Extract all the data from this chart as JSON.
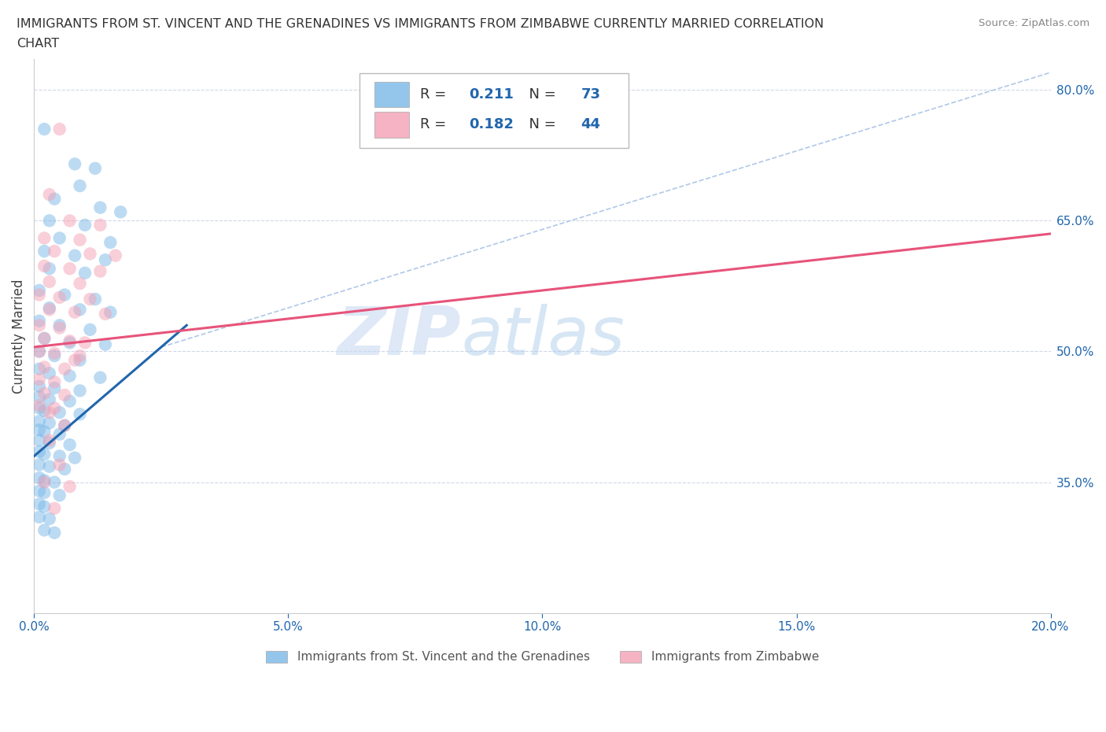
{
  "title_line1": "IMMIGRANTS FROM ST. VINCENT AND THE GRENADINES VS IMMIGRANTS FROM ZIMBABWE CURRENTLY MARRIED CORRELATION",
  "title_line2": "CHART",
  "source": "Source: ZipAtlas.com",
  "ylabel": "Currently Married",
  "xlim": [
    0.0,
    0.2
  ],
  "ylim": [
    0.2,
    0.835
  ],
  "yticks": [
    0.35,
    0.5,
    0.65,
    0.8
  ],
  "ytick_labels": [
    "35.0%",
    "50.0%",
    "65.0%",
    "80.0%"
  ],
  "xticks": [
    0.0,
    0.05,
    0.1,
    0.15,
    0.2
  ],
  "xtick_labels": [
    "0.0%",
    "5.0%",
    "10.0%",
    "15.0%",
    "20.0%"
  ],
  "blue_R": 0.211,
  "blue_N": 73,
  "pink_R": 0.182,
  "pink_N": 44,
  "blue_color": "#7ab8e8",
  "pink_color": "#f4a0b5",
  "blue_scatter": [
    [
      0.002,
      0.755
    ],
    [
      0.008,
      0.715
    ],
    [
      0.012,
      0.71
    ],
    [
      0.009,
      0.69
    ],
    [
      0.004,
      0.675
    ],
    [
      0.013,
      0.665
    ],
    [
      0.017,
      0.66
    ],
    [
      0.003,
      0.65
    ],
    [
      0.01,
      0.645
    ],
    [
      0.005,
      0.63
    ],
    [
      0.015,
      0.625
    ],
    [
      0.002,
      0.615
    ],
    [
      0.008,
      0.61
    ],
    [
      0.014,
      0.605
    ],
    [
      0.003,
      0.595
    ],
    [
      0.01,
      0.59
    ],
    [
      0.001,
      0.57
    ],
    [
      0.006,
      0.565
    ],
    [
      0.012,
      0.56
    ],
    [
      0.003,
      0.55
    ],
    [
      0.009,
      0.548
    ],
    [
      0.015,
      0.545
    ],
    [
      0.001,
      0.535
    ],
    [
      0.005,
      0.53
    ],
    [
      0.011,
      0.525
    ],
    [
      0.002,
      0.515
    ],
    [
      0.007,
      0.51
    ],
    [
      0.014,
      0.508
    ],
    [
      0.001,
      0.5
    ],
    [
      0.004,
      0.495
    ],
    [
      0.009,
      0.49
    ],
    [
      0.001,
      0.48
    ],
    [
      0.003,
      0.475
    ],
    [
      0.007,
      0.472
    ],
    [
      0.013,
      0.47
    ],
    [
      0.001,
      0.46
    ],
    [
      0.004,
      0.458
    ],
    [
      0.009,
      0.455
    ],
    [
      0.001,
      0.448
    ],
    [
      0.003,
      0.445
    ],
    [
      0.007,
      0.443
    ],
    [
      0.001,
      0.435
    ],
    [
      0.002,
      0.432
    ],
    [
      0.005,
      0.43
    ],
    [
      0.009,
      0.428
    ],
    [
      0.001,
      0.42
    ],
    [
      0.003,
      0.418
    ],
    [
      0.006,
      0.415
    ],
    [
      0.001,
      0.41
    ],
    [
      0.002,
      0.408
    ],
    [
      0.005,
      0.405
    ],
    [
      0.001,
      0.398
    ],
    [
      0.003,
      0.395
    ],
    [
      0.007,
      0.393
    ],
    [
      0.001,
      0.385
    ],
    [
      0.002,
      0.382
    ],
    [
      0.005,
      0.38
    ],
    [
      0.008,
      0.378
    ],
    [
      0.001,
      0.37
    ],
    [
      0.003,
      0.368
    ],
    [
      0.006,
      0.365
    ],
    [
      0.001,
      0.355
    ],
    [
      0.002,
      0.352
    ],
    [
      0.004,
      0.35
    ],
    [
      0.001,
      0.34
    ],
    [
      0.002,
      0.338
    ],
    [
      0.005,
      0.335
    ],
    [
      0.001,
      0.325
    ],
    [
      0.002,
      0.322
    ],
    [
      0.001,
      0.31
    ],
    [
      0.003,
      0.308
    ],
    [
      0.002,
      0.295
    ],
    [
      0.004,
      0.292
    ]
  ],
  "pink_scatter": [
    [
      0.005,
      0.755
    ],
    [
      0.003,
      0.68
    ],
    [
      0.007,
      0.65
    ],
    [
      0.013,
      0.645
    ],
    [
      0.002,
      0.63
    ],
    [
      0.009,
      0.628
    ],
    [
      0.004,
      0.615
    ],
    [
      0.011,
      0.612
    ],
    [
      0.016,
      0.61
    ],
    [
      0.002,
      0.598
    ],
    [
      0.007,
      0.595
    ],
    [
      0.013,
      0.592
    ],
    [
      0.003,
      0.58
    ],
    [
      0.009,
      0.578
    ],
    [
      0.001,
      0.565
    ],
    [
      0.005,
      0.562
    ],
    [
      0.011,
      0.56
    ],
    [
      0.003,
      0.548
    ],
    [
      0.008,
      0.545
    ],
    [
      0.014,
      0.543
    ],
    [
      0.001,
      0.53
    ],
    [
      0.005,
      0.527
    ],
    [
      0.002,
      0.515
    ],
    [
      0.007,
      0.512
    ],
    [
      0.001,
      0.5
    ],
    [
      0.004,
      0.498
    ],
    [
      0.009,
      0.495
    ],
    [
      0.002,
      0.482
    ],
    [
      0.006,
      0.48
    ],
    [
      0.001,
      0.468
    ],
    [
      0.004,
      0.465
    ],
    [
      0.002,
      0.452
    ],
    [
      0.006,
      0.45
    ],
    [
      0.001,
      0.438
    ],
    [
      0.004,
      0.435
    ],
    [
      0.01,
      0.51
    ],
    [
      0.008,
      0.49
    ],
    [
      0.003,
      0.43
    ],
    [
      0.002,
      0.35
    ],
    [
      0.004,
      0.32
    ],
    [
      0.006,
      0.415
    ],
    [
      0.003,
      0.398
    ],
    [
      0.005,
      0.37
    ],
    [
      0.007,
      0.345
    ]
  ],
  "blue_line_x": [
    0.0,
    0.03
  ],
  "blue_line_y": [
    0.38,
    0.53
  ],
  "pink_line_x": [
    0.0,
    0.2
  ],
  "pink_line_y": [
    0.505,
    0.635
  ],
  "ref_line_x": [
    0.025,
    0.2
  ],
  "ref_line_y": [
    0.505,
    0.82
  ],
  "legend_label_blue": "Immigrants from St. Vincent and the Grenadines",
  "legend_label_pink": "Immigrants from Zimbabwe",
  "watermark_zip": "ZIP",
  "watermark_atlas": "atlas"
}
